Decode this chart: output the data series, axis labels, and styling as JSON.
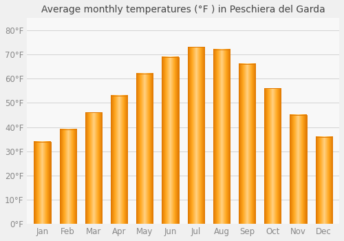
{
  "title": "Average monthly temperatures (°F ) in Peschiera del Garda",
  "months": [
    "Jan",
    "Feb",
    "Mar",
    "Apr",
    "May",
    "Jun",
    "Jul",
    "Aug",
    "Sep",
    "Oct",
    "Nov",
    "Dec"
  ],
  "values": [
    34,
    39,
    46,
    53,
    62,
    69,
    73,
    72,
    66,
    56,
    45,
    36
  ],
  "bar_color_light": "#FFD080",
  "bar_color_mid": "#FFA820",
  "bar_color_dark": "#E07800",
  "background_color": "#f0f0f0",
  "plot_bg_color": "#f8f8f8",
  "grid_color": "#cccccc",
  "title_color": "#444444",
  "tick_color": "#888888",
  "ytick_labels": [
    "0°F",
    "10°F",
    "20°F",
    "30°F",
    "40°F",
    "50°F",
    "60°F",
    "70°F",
    "80°F"
  ],
  "ytick_values": [
    0,
    10,
    20,
    30,
    40,
    50,
    60,
    70,
    80
  ],
  "ylim": [
    0,
    85
  ],
  "title_fontsize": 10,
  "tick_fontsize": 8.5
}
